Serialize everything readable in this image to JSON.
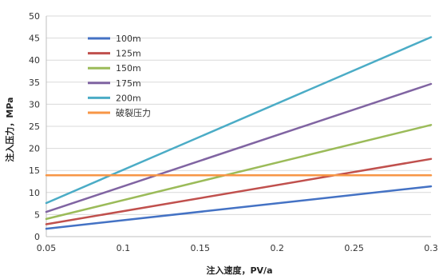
{
  "chart_data": {
    "type": "line",
    "title": "",
    "xlabel": "注入速度，PV/a",
    "ylabel": "注入压力，MPa",
    "xlim": [
      0.05,
      0.3
    ],
    "ylim": [
      0,
      50
    ],
    "x_ticks": [
      "0.05",
      "0.1",
      "0.15",
      "0.2",
      "0.25",
      "0.3"
    ],
    "y_ticks": [
      "0",
      "5",
      "10",
      "15",
      "20",
      "25",
      "30",
      "35",
      "40",
      "45",
      "50"
    ],
    "grid": {
      "x": false,
      "y": true
    },
    "legend_position": "top-left",
    "series": [
      {
        "name": "100m",
        "color": "#4472c4",
        "x": [
          0.05,
          0.3
        ],
        "y": [
          1.8,
          11.4
        ]
      },
      {
        "name": "125m",
        "color": "#c0504d",
        "x": [
          0.05,
          0.3
        ],
        "y": [
          2.8,
          17.6
        ]
      },
      {
        "name": "150m",
        "color": "#9bbb59",
        "x": [
          0.05,
          0.3
        ],
        "y": [
          4.0,
          25.3
        ]
      },
      {
        "name": "175m",
        "color": "#8064a2",
        "x": [
          0.05,
          0.3
        ],
        "y": [
          5.6,
          34.6
        ]
      },
      {
        "name": "200m",
        "color": "#4bacc6",
        "x": [
          0.05,
          0.3
        ],
        "y": [
          7.6,
          45.2
        ]
      },
      {
        "name": "破裂压力",
        "color": "#f79646",
        "x": [
          0.05,
          0.3
        ],
        "y": [
          13.9,
          13.9
        ]
      }
    ]
  }
}
